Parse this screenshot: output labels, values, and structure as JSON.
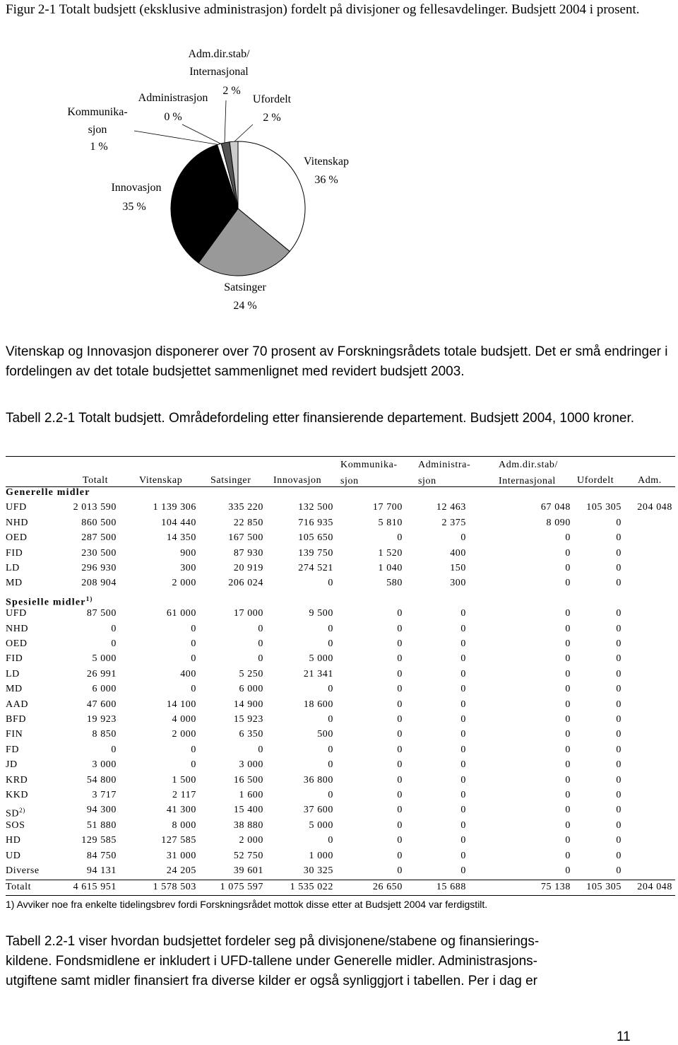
{
  "caption": "Figur 2-1 Totalt budsjett (eksklusive administrasjon) fordelt på divisjoner og fellesavdelinger. Budsjett 2004 i prosent.",
  "chart_data": {
    "type": "pie",
    "categories": [
      "Vitenskap",
      "Satsinger",
      "Innovasjon",
      "Kommunika-\nsjon",
      "Administrasjon",
      "Adm.dir.stab/\nInternasjonal",
      "Ufordelt"
    ],
    "values": [
      36,
      24,
      35,
      1,
      0,
      2,
      2
    ],
    "value_labels": [
      "36 %",
      "24 %",
      "35 %",
      "1 %",
      "0 %",
      "2 %",
      "2 %"
    ],
    "colors": [
      "#ffffff",
      "#999999",
      "#000000",
      "#ffffff",
      "#ffffff",
      "#555555",
      "#cccccc"
    ]
  },
  "paragraphs": [
    "Vitenskap og Innovasjon disponerer over 70 prosent av Forskningsrådets totale budsjett. Det er små endringer i fordelingen av det totale budsjettet sammenlignet med revidert budsjett 2003.",
    "Tabell 2.2-1 viser hvordan budsjettet fordeler seg på divisjonene/stabene og finansierings-\nkildene. Fondsmidlene er inkludert i UFD-tallene under Generelle midler. Administrasjons-\nutgiftene samt midler finansiert fra diverse kilder er også synliggjort i tabellen. Per i dag er"
  ],
  "table": {
    "title": "Tabell 2.2-1 Totalt budsjett. Områdefordeling etter finansierende departement. Budsjett 2004, 1000 kroner.",
    "columns": [
      "Totalt",
      "Vitenskap",
      "Satsinger",
      "Innovasjon",
      "Kommunika-\nsjon",
      "Administra-\nsjon",
      "Adm.dir.stab/\nInternasjonal",
      "Ufordelt",
      "Adm."
    ],
    "sections": [
      {
        "title": "Generelle midler",
        "rows": [
          {
            "label": "UFD",
            "cells": [
              "2 013 590",
              "1 139 306",
              "335 220",
              "132 500",
              "17 700",
              "12 463",
              "67 048",
              "105 305",
              "204 048"
            ]
          },
          {
            "label": "NHD",
            "cells": [
              "860 500",
              "104 440",
              "22 850",
              "716 935",
              "5 810",
              "2 375",
              "8 090",
              "0"
            ]
          },
          {
            "label": "OED",
            "cells": [
              "287 500",
              "14 350",
              "167 500",
              "105 650",
              "0",
              "0",
              "0",
              "0"
            ]
          },
          {
            "label": "FID",
            "cells": [
              "230 500",
              "900",
              "87 930",
              "139 750",
              "1 520",
              "400",
              "0",
              "0"
            ]
          },
          {
            "label": "LD",
            "cells": [
              "296 930",
              "300",
              "20 919",
              "274 521",
              "1 040",
              "150",
              "0",
              "0"
            ]
          },
          {
            "label": "MD",
            "cells": [
              "208 904",
              "2 000",
              "206 024",
              "0",
              "580",
              "300",
              "0",
              "0"
            ]
          }
        ]
      },
      {
        "title": "Spesielle midler",
        "note": "1)",
        "rows": [
          {
            "label": "UFD",
            "cells": [
              "87 500",
              "61 000",
              "17 000",
              "9 500",
              "0",
              "0",
              "0",
              "0"
            ]
          },
          {
            "label": "NHD",
            "cells": [
              "0",
              "0",
              "0",
              "0",
              "0",
              "0",
              "0",
              "0"
            ]
          },
          {
            "label": "OED",
            "cells": [
              "0",
              "0",
              "0",
              "0",
              "0",
              "0",
              "0",
              "0"
            ]
          },
          {
            "label": "FID",
            "cells": [
              "5 000",
              "0",
              "0",
              "5 000",
              "0",
              "0",
              "0",
              "0"
            ]
          },
          {
            "label": "LD",
            "cells": [
              "26 991",
              "400",
              "5 250",
              "21 341",
              "0",
              "0",
              "0",
              "0"
            ]
          },
          {
            "label": "MD",
            "cells": [
              "6 000",
              "0",
              "6 000",
              "0",
              "0",
              "0",
              "0",
              "0"
            ]
          },
          {
            "label": "AAD",
            "cells": [
              "47 600",
              "14 100",
              "14 900",
              "18 600",
              "0",
              "0",
              "0",
              "0"
            ]
          },
          {
            "label": "BFD",
            "cells": [
              "19 923",
              "4 000",
              "15 923",
              "0",
              "0",
              "0",
              "0",
              "0"
            ]
          },
          {
            "label": "FIN",
            "cells": [
              "8 850",
              "2 000",
              "6 350",
              "500",
              "0",
              "0",
              "0",
              "0"
            ]
          },
          {
            "label": "FD",
            "cells": [
              "0",
              "0",
              "0",
              "0",
              "0",
              "0",
              "0",
              "0"
            ]
          },
          {
            "label": "JD",
            "cells": [
              "3 000",
              "0",
              "3 000",
              "0",
              "0",
              "0",
              "0",
              "0"
            ]
          },
          {
            "label": "KRD",
            "cells": [
              "54 800",
              "1 500",
              "16 500",
              "36 800",
              "0",
              "0",
              "0",
              "0"
            ]
          },
          {
            "label": "KKD",
            "cells": [
              "3 717",
              "2 117",
              "1 600",
              "0",
              "0",
              "0",
              "0",
              "0"
            ]
          },
          {
            "label": "SD",
            "note": "2)",
            "cells": [
              "94 300",
              "41 300",
              "15 400",
              "37 600",
              "0",
              "0",
              "0",
              "0"
            ]
          },
          {
            "label": "SOS",
            "cells": [
              "51 880",
              "8 000",
              "38 880",
              "5 000",
              "0",
              "0",
              "0",
              "0"
            ]
          },
          {
            "label": "HD",
            "cells": [
              "129 585",
              "127 585",
              "2 000",
              "0",
              "0",
              "0",
              "0",
              "0"
            ]
          },
          {
            "label": "UD",
            "cells": [
              "84 750",
              "31 000",
              "52 750",
              "1 000",
              "0",
              "0",
              "0",
              "0"
            ]
          },
          {
            "label": "Diverse",
            "cells": [
              "94 131",
              "24 205",
              "39 601",
              "30 325",
              "0",
              "0",
              "0",
              "0"
            ]
          }
        ]
      }
    ],
    "total": {
      "label": "Totalt",
      "cells": [
        "4 615 951",
        "1 578 503",
        "1 075 597",
        "1 535 022",
        "26 650",
        "15 688",
        "75 138",
        "105 305",
        "204 048"
      ]
    },
    "footnote": "1) Avviker noe fra enkelte tidelingsbrev fordi Forskningsrådet mottok disse etter at Budsjett 2004 var ferdigstilt."
  },
  "page_number": "11"
}
